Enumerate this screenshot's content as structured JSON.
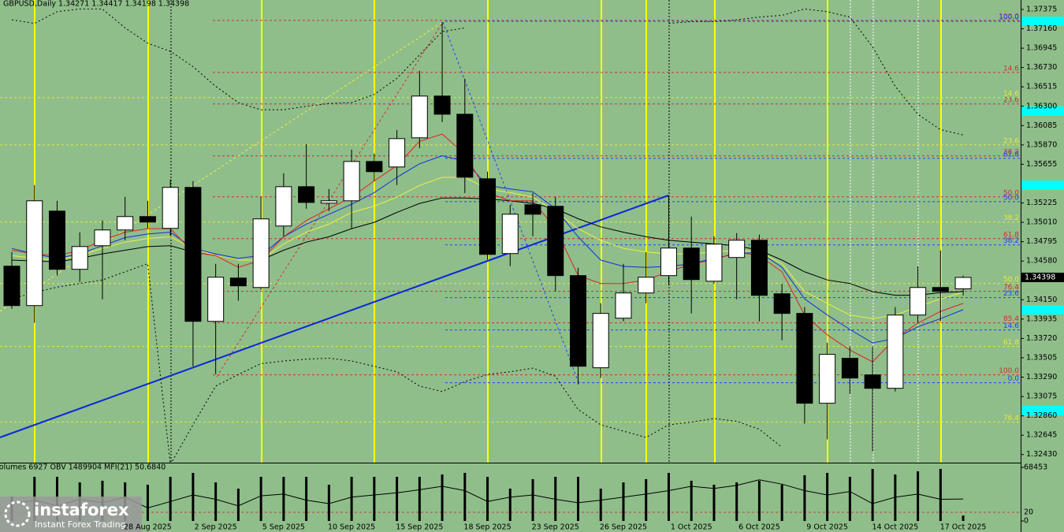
{
  "chart_data": {
    "type": "candlestick",
    "title": "GBPUSD,Daily  1.34271 1.34417 1.34198 1.34398",
    "categories": [
      null,
      null,
      null,
      null,
      null,
      null,
      "28 Aug 2025",
      null,
      null,
      "2 Sep 2025",
      null,
      null,
      "5 Sep 2025",
      null,
      null,
      "10 Sep 2025",
      null,
      null,
      "15 Sep 2025",
      null,
      null,
      "18 Sep 2025",
      null,
      null,
      "23 Sep 2025",
      null,
      null,
      "26 Sep 2025",
      null,
      null,
      "1 Oct 2025",
      null,
      null,
      "6 Oct 2025",
      null,
      null,
      "9 Oct 2025",
      null,
      null,
      "14 Oct 2025",
      null,
      null,
      "17 Oct 2025"
    ],
    "open": [
      1.34523,
      1.34085,
      1.35135,
      1.34488,
      1.3475,
      1.34925,
      1.35074,
      1.34943,
      1.35398,
      1.3391,
      1.34391,
      1.34286,
      1.34969,
      1.35406,
      1.35223,
      1.35249,
      1.35686,
      1.35625,
      1.35949,
      1.36413,
      1.36211,
      1.35494,
      1.34663,
      1.35205,
      1.35188,
      1.34418,
      1.33394,
      1.33945,
      1.34225,
      1.34418,
      1.34724,
      1.34356,
      1.34619,
      1.34811,
      1.34216,
      1.33998,
      1.33,
      1.33499,
      1.33315,
      1.33166,
      1.3398,
      1.34286,
      1.34271
    ],
    "high": [
      1.3468,
      1.35424,
      1.35249,
      1.34899,
      1.3503,
      1.35293,
      1.35249,
      1.35485,
      1.35468,
      1.34549,
      1.34549,
      1.35293,
      1.35555,
      1.35879,
      1.3538,
      1.35818,
      1.35774,
      1.36036,
      1.36693,
      1.37235,
      1.36605,
      1.35573,
      1.35205,
      1.35336,
      1.35293,
      1.34505,
      1.34111,
      1.34549,
      1.3468,
      1.3531,
      1.35074,
      1.34855,
      1.3489,
      1.34873,
      1.3433,
      1.34068,
      1.33674,
      1.3363,
      1.3363,
      1.34068,
      1.34523,
      1.34698,
      1.34417
    ],
    "low": [
      1.3405,
      1.33893,
      1.34418,
      1.34348,
      1.34155,
      1.34811,
      1.34943,
      1.34855,
      1.33411,
      1.33324,
      1.34138,
      1.3426,
      1.34855,
      1.35161,
      1.35135,
      1.34943,
      1.35468,
      1.35424,
      1.35835,
      1.36124,
      1.35336,
      1.34593,
      1.34523,
      1.34855,
      1.34243,
      1.3321,
      1.3328,
      1.3391,
      1.34111,
      1.34313,
      1.33998,
      1.3433,
      1.34155,
      1.3391,
      1.337,
      1.32773,
      1.32598,
      1.33105,
      1.32466,
      1.33131,
      1.33893,
      1.3391,
      1.34198
    ],
    "close": [
      1.34085,
      1.35249,
      1.34488,
      1.34741,
      1.34925,
      1.35074,
      1.35013,
      1.35398,
      1.3391,
      1.344,
      1.34304,
      1.35048,
      1.35406,
      1.35231,
      1.35249,
      1.35686,
      1.35573,
      1.3594,
      1.36413,
      1.36211,
      1.35511,
      1.34654,
      1.351,
      1.351,
      1.34418,
      1.33411,
      1.33998,
      1.34225,
      1.344,
      1.34724,
      1.34374,
      1.34768,
      1.34811,
      1.34199,
      1.33998,
      1.33,
      1.33543,
      1.3328,
      1.33166,
      1.3398,
      1.34286,
      1.34243,
      1.34398
    ],
    "up_color": "#ffffff",
    "down_color": "#000000",
    "ylim": [
      1.3234,
      1.3748
    ],
    "yticks": [
      1.37375,
      {
        "value": 1.3716,
        "label": "1.37160"
      },
      1.36945,
      {
        "value": 1.3673,
        "label": "1.36730"
      },
      1.36515,
      {
        "value": 1.363,
        "label": "1.36300"
      },
      1.36085,
      {
        "value": 1.3587,
        "label": "1.35870"
      },
      1.35655,
      1.35225,
      {
        "value": 1.3501,
        "label": "1.35010"
      },
      1.34795,
      {
        "value": 1.3458,
        "label": "1.34580"
      },
      {
        "value": 1.3415,
        "label": "1.34150"
      },
      1.33935,
      {
        "value": 1.3372,
        "label": "1.33720"
      },
      1.33505,
      {
        "value": 1.3329,
        "label": "1.33290"
      },
      1.33075,
      {
        "value": 1.3286,
        "label": "1.32860"
      },
      1.32645,
      {
        "value": 1.3243,
        "label": "1.32430"
      }
    ],
    "lines": [
      {
        "color": "#000000",
        "dash": false,
        "values": [
          1.3459,
          1.3458,
          1.3457,
          1.3461,
          1.3466,
          1.347,
          1.3474,
          1.3475,
          1.3468,
          1.3464,
          1.3459,
          1.3459,
          1.347,
          1.3479,
          1.3485,
          1.3494,
          1.3501,
          1.3512,
          1.3522,
          1.3528,
          1.3528,
          1.3527,
          1.3525,
          1.3522,
          1.3516,
          1.3505,
          1.3496,
          1.349,
          1.3485,
          1.3481,
          1.3479,
          1.3477,
          1.3475,
          1.347,
          1.3459,
          1.3446,
          1.3437,
          1.3433,
          1.3424,
          1.342,
          1.342,
          1.3423,
          1.3424
        ]
      },
      {
        "color": "#f0f040",
        "dash": false,
        "values": [
          1.3464,
          1.3461,
          1.3459,
          1.3464,
          1.3472,
          1.3479,
          1.3483,
          1.3485,
          1.3472,
          1.3464,
          1.3459,
          1.3459,
          1.3477,
          1.349,
          1.3499,
          1.3512,
          1.3519,
          1.3529,
          1.3542,
          1.3551,
          1.3551,
          1.3538,
          1.3534,
          1.3529,
          1.3513,
          1.3494,
          1.3481,
          1.3472,
          1.3468,
          1.3466,
          1.3466,
          1.3468,
          1.347,
          1.3468,
          1.3455,
          1.3424,
          1.3411,
          1.3398,
          1.3394,
          1.3398,
          1.3407,
          1.3416,
          1.3423
        ]
      },
      {
        "color": "#1030e0",
        "dash": false,
        "values": [
          1.3472,
          1.3466,
          1.3461,
          1.3466,
          1.3475,
          1.3484,
          1.3488,
          1.349,
          1.3472,
          1.3466,
          1.3461,
          1.3464,
          1.3485,
          1.3499,
          1.351,
          1.3521,
          1.3534,
          1.3551,
          1.3566,
          1.3575,
          1.3569,
          1.3542,
          1.3538,
          1.3535,
          1.3516,
          1.3485,
          1.3459,
          1.3452,
          1.3451,
          1.3452,
          1.3455,
          1.3461,
          1.3466,
          1.3468,
          1.3451,
          1.3416,
          1.3398,
          1.3382,
          1.3367,
          1.3372,
          1.3385,
          1.3394,
          1.3404
        ]
      },
      {
        "color": "#e02020",
        "dash": false,
        "values": [
          1.347,
          1.3466,
          1.3464,
          1.347,
          1.3481,
          1.349,
          1.3494,
          1.3494,
          1.3468,
          1.3464,
          1.3451,
          1.3459,
          1.3485,
          1.3503,
          1.3516,
          1.3529,
          1.3547,
          1.3564,
          1.3591,
          1.3599,
          1.3577,
          1.3534,
          1.3525,
          1.3525,
          1.3494,
          1.3442,
          1.3433,
          1.3433,
          1.3437,
          1.3446,
          1.3455,
          1.3459,
          1.3468,
          1.3464,
          1.3446,
          1.3398,
          1.3376,
          1.3359,
          1.3346,
          1.3372,
          1.3389,
          1.3402,
          1.3411
        ]
      },
      {
        "color": "#000000",
        "dash": true,
        "values": [
          1.3726,
          1.3722,
          1.3735,
          1.3738,
          1.3738,
          1.3717,
          1.37,
          1.3691,
          1.3674,
          1.3652,
          1.3634,
          1.3626,
          1.3626,
          1.363,
          1.3633,
          1.3634,
          1.3643,
          1.3661,
          1.3687,
          1.3713,
          1.3717,
          null,
          null,
          null,
          null,
          null,
          null,
          null,
          null,
          1.3722,
          1.3724,
          1.3724,
          1.3726,
          1.3729,
          1.3731,
          1.3738,
          1.3735,
          1.3729,
          1.3696,
          1.3652,
          1.3621,
          1.3604,
          1.3598
        ]
      },
      {
        "color": "#000000",
        "dash": true,
        "values": [
          1.3416,
          1.3423,
          1.3429,
          1.3433,
          1.3437,
          1.3446,
          1.3455,
          1.3232,
          1.3276,
          1.3319,
          1.3332,
          1.3344,
          1.3347,
          1.3349,
          1.335,
          1.3347,
          1.3341,
          1.3335,
          1.3319,
          1.3313,
          1.3324,
          1.3332,
          1.3335,
          1.3339,
          1.333,
          1.3293,
          1.3276,
          1.3269,
          1.3262,
          1.3276,
          1.3279,
          1.3283,
          1.328,
          1.3271,
          1.3251,
          null,
          null,
          null,
          null,
          null,
          null,
          null,
          null
        ]
      }
    ],
    "fib_levels": [
      {
        "label": "100.0",
        "price": 1.37253,
        "color": "#d03030"
      },
      {
        "label": "14.6",
        "price": 1.36675,
        "color": "#d03030"
      },
      {
        "label": "23.6",
        "price": 1.36325,
        "color": "#d03030"
      },
      {
        "label": "38.2",
        "price": 1.35748,
        "color": "#d03030"
      },
      {
        "label": "50.0",
        "price": 1.35293,
        "color": "#d03030"
      },
      {
        "label": "61.8",
        "price": 1.34829,
        "color": "#d03030"
      },
      {
        "label": "76.4",
        "price": 1.34243,
        "color": "#d03030"
      },
      {
        "label": "85.4",
        "price": 1.33893,
        "color": "#d03030"
      },
      {
        "label": "100.0",
        "price": 1.33315,
        "color": "#d03030"
      },
      {
        "label": "100.0",
        "price": 1.37244,
        "color": "#2040ff"
      },
      {
        "label": "61.8",
        "price": 1.35721,
        "color": "#2040ff"
      },
      {
        "label": "50.0",
        "price": 1.3524,
        "color": "#2040ff"
      },
      {
        "label": "38.2",
        "price": 1.34759,
        "color": "#2040ff"
      },
      {
        "label": "23.6",
        "price": 1.34173,
        "color": "#2040ff"
      },
      {
        "label": "14.6",
        "price": 1.33814,
        "color": "#2040ff"
      },
      {
        "label": "0.0",
        "price": 1.33228,
        "color": "#2040ff"
      },
      {
        "label": "14.6",
        "price": 1.36395,
        "color": "#e8e840"
      },
      {
        "label": "23.6",
        "price": 1.3587,
        "color": "#e8e840"
      },
      {
        "label": "38.2",
        "price": 1.35013,
        "color": "#e8e840"
      },
      {
        "label": "50.0",
        "price": 1.3433,
        "color": "#e8e840"
      },
      {
        "label": "61.8",
        "price": 1.3363,
        "color": "#e8e840"
      },
      {
        "label": "76.4",
        "price": 1.3279,
        "color": "#e8e840"
      }
    ],
    "indicator_title": "Volumes 6927 OBV 1489904 MFI(21) 50.6840",
    "volumes": [
      31200,
      56400,
      56400,
      49300,
      51400,
      49300,
      46300,
      56400,
      61400,
      49300,
      41300,
      56400,
      56400,
      56400,
      46300,
      56400,
      56400,
      56400,
      56400,
      59400,
      61400,
      56400,
      41300,
      53400,
      56400,
      56400,
      41300,
      49300,
      53400,
      61400,
      51400,
      46300,
      49300,
      51400,
      46300,
      58400,
      61400,
      56400,
      66500,
      59400,
      63400,
      66500,
      6927
    ],
    "volume_ylim": [
      0,
      68453
    ],
    "volume_ticks": [
      0,
      68453
    ],
    "mfi": [
      40,
      48,
      35,
      50,
      42,
      55,
      30,
      45,
      60,
      50,
      35,
      58,
      62,
      48,
      40,
      55,
      60,
      65,
      72,
      80,
      70,
      45,
      55,
      60,
      50,
      42,
      48,
      55,
      62,
      70,
      80,
      75,
      82,
      95,
      85,
      70,
      60,
      68,
      40,
      55,
      62,
      50,
      50.684
    ],
    "mfi_ylim": [
      0,
      100
    ],
    "mfi_ticks": [
      20
    ]
  },
  "logo": {
    "name": "instaforex",
    "tagline": "Instant Forex Trading"
  }
}
